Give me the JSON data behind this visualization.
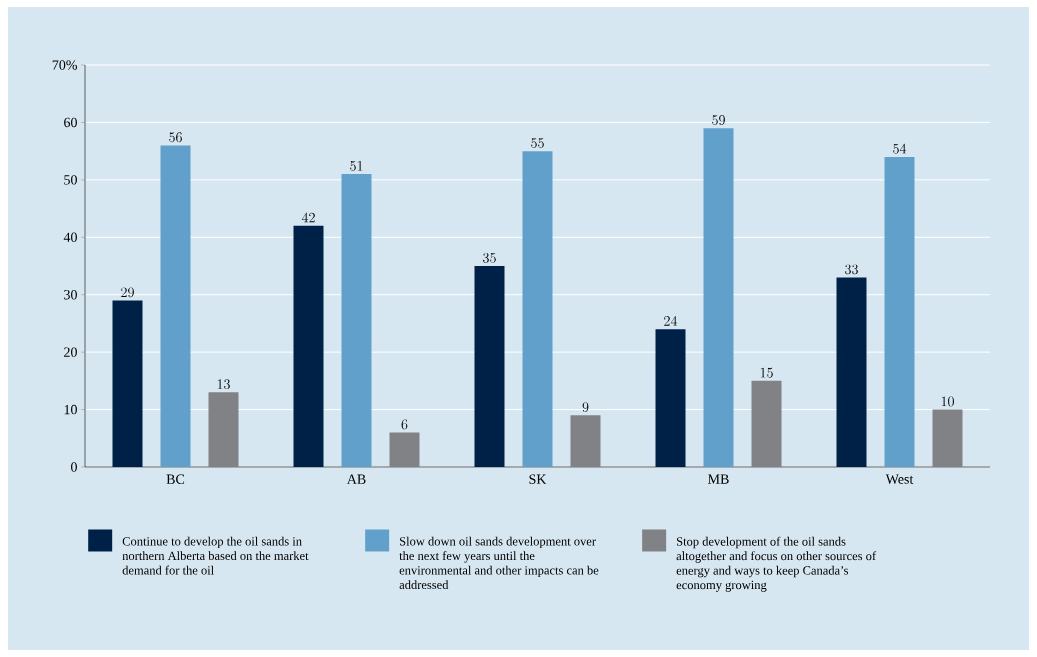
{
  "chart_data": {
    "type": "bar",
    "categories": [
      "BC",
      "AB",
      "SK",
      "MB",
      "West"
    ],
    "series": [
      {
        "name": "Continue to develop the oil sands in northern Alberta based on the market demand for the oil",
        "color": "#002147",
        "values": [
          29,
          42,
          35,
          24,
          33
        ]
      },
      {
        "name": "Slow down oil sands development over the next few years until the environmental and other impacts can be addressed",
        "color": "#62a0cc",
        "values": [
          56,
          51,
          55,
          59,
          54
        ]
      },
      {
        "name": "Stop development of the oil sands altogether and focus on other sources of energy and ways to keep Canada’s economy growing",
        "color": "#808285",
        "values": [
          13,
          6,
          9,
          15,
          10
        ]
      }
    ],
    "ylim": [
      0,
      70
    ],
    "yticks": [
      0,
      10,
      20,
      30,
      40,
      50,
      60,
      {
        "value": 70,
        "label": "70%"
      }
    ],
    "grid": "y",
    "legend": "bottom",
    "data_labels": true
  }
}
